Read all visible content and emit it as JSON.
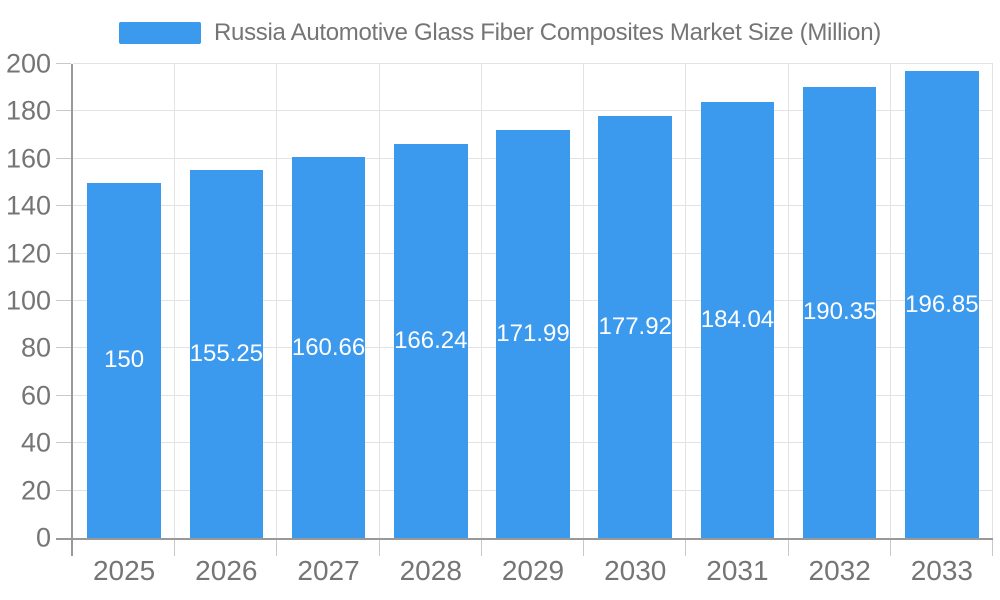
{
  "chart_data": {
    "type": "bar",
    "title": "",
    "legend": {
      "position": "top",
      "label": "Russia Automotive Glass Fiber Composites Market Size (Million)"
    },
    "categories": [
      "2025",
      "2026",
      "2027",
      "2028",
      "2029",
      "2030",
      "2031",
      "2032",
      "2033"
    ],
    "series": [
      {
        "name": "Russia Automotive Glass Fiber Composites Market Size (Million)",
        "values": [
          150,
          155.25,
          160.66,
          166.24,
          171.99,
          177.92,
          184.04,
          190.35,
          196.85
        ],
        "value_labels": [
          "150",
          "155.25",
          "160.66",
          "166.24",
          "171.99",
          "177.92",
          "184.04",
          "190.35",
          "196.85"
        ]
      }
    ],
    "xlabel": "",
    "ylabel": "",
    "ylim": [
      0,
      200
    ],
    "ytick_step": 20,
    "yticks": [
      0,
      20,
      40,
      60,
      80,
      100,
      120,
      140,
      160,
      180,
      200
    ],
    "grid": true,
    "colors": {
      "bar": "#3B99EE",
      "axis_line": "#999999",
      "gridline": "#E3E3E3",
      "tick": "#C9C9C9",
      "axis_text": "#757575",
      "value_label_text": "#FFFFFF",
      "background": "#FFFFFF"
    }
  }
}
